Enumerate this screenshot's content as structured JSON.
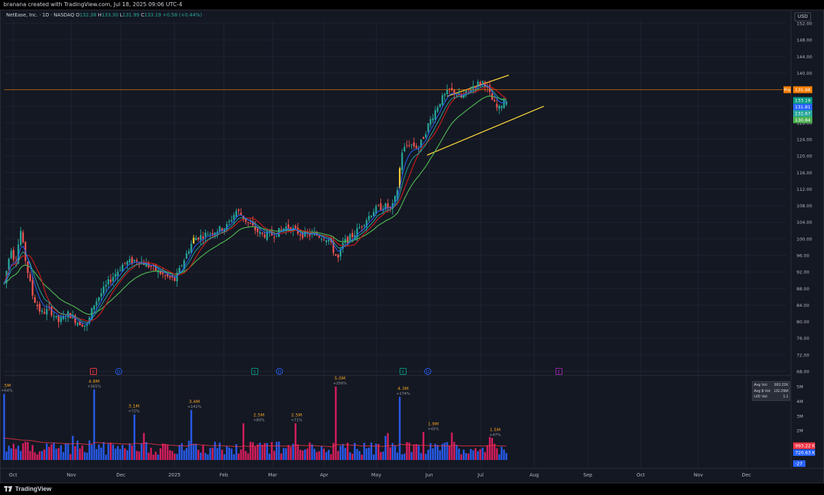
{
  "header": {
    "attribution": "branana created with TradingView.com, Jul 18, 2025 09:06 UTC-4",
    "symbol": "NetEase, Inc. · 1D · NASDAQ",
    "open_label": "O",
    "open": "132.38",
    "high_label": "H",
    "high": "133.30",
    "low_label": "L",
    "low": "131.99",
    "close_label": "C",
    "close": "133.19",
    "change": "+0.58 (+0.44%)",
    "currency": "USD"
  },
  "footer": {
    "brand": "TradingView"
  },
  "colors": {
    "up": "#26a69a",
    "down": "#ef5350",
    "accent_yellow": "#f5d038",
    "ema_fast": "#2962ff",
    "ema_mid": "#26a69a",
    "sma_red": "#b71c1c",
    "ema_slow": "#4caf50",
    "premarket": "#f57c00",
    "vol_blue": "#2962ff",
    "vol_pink": "#e91e63",
    "earnings": "#f23645",
    "dividend": "#2962ff",
    "split": "#089981",
    "future_event": "#9c27b0"
  },
  "price_axis": {
    "ticks": [
      "152.00",
      "148.00",
      "144.00",
      "140.00",
      "136.00",
      "132.00",
      "128.00",
      "124.00",
      "120.00",
      "116.00",
      "112.00",
      "108.00",
      "104.00",
      "100.00",
      "96.00",
      "92.00",
      "88.00",
      "84.00",
      "80.00",
      "76.00",
      "72.00",
      "68.00"
    ],
    "premarket_label": "Pre",
    "premarket_price": "135.98",
    "price_tags": [
      {
        "value": "133.19",
        "color": "#089981"
      },
      {
        "value": "131.81",
        "color": "#2962ff"
      },
      {
        "value": "131.67",
        "color": "#26a69a"
      },
      {
        "value": "130.84",
        "color": "#4caf50"
      }
    ]
  },
  "volume_axis": {
    "ticks": [
      "5M",
      "4M",
      "3M",
      "2M",
      "1M"
    ],
    "tags": [
      {
        "value": "993.22 K",
        "color": "#f23645"
      },
      {
        "value": "720.63 K",
        "color": "#2962ff"
      },
      {
        "value": "-27",
        "color": "#2962ff"
      }
    ],
    "stats": [
      {
        "label": "Avg Vol:",
        "value": "993.22K"
      },
      {
        "label": "Avg $ Vol:",
        "value": "132.29M"
      },
      {
        "label": "U/D Vol:",
        "value": "1.1"
      }
    ]
  },
  "time_axis": {
    "labels": [
      "Oct",
      "Nov",
      "Dec",
      "2025",
      "Feb",
      "Mar",
      "Apr",
      "May",
      "Jun",
      "Jul",
      "Aug",
      "Sep",
      "Oct",
      "Nov",
      "Dec"
    ]
  },
  "event_markers": [
    {
      "letter": "E",
      "type": "earnings"
    },
    {
      "letter": "D",
      "type": "dividend"
    },
    {
      "letter": "E",
      "type": "split"
    },
    {
      "letter": "D",
      "type": "dividend"
    },
    {
      "letter": "E",
      "type": "split"
    },
    {
      "letter": "D",
      "type": "dividend"
    },
    {
      "letter": "E",
      "type": "future_event"
    }
  ],
  "volume_annotations": [
    {
      "volume": ".5M",
      "pct": "+64%"
    },
    {
      "volume": "4.8M",
      "pct": "+365%"
    },
    {
      "volume": "3.1M",
      "pct": "+72%"
    },
    {
      "volume": "3.4M",
      "pct": "+141%"
    },
    {
      "volume": "2.5M",
      "pct": "+80%"
    },
    {
      "volume": "2.5M",
      "pct": "+71%"
    },
    {
      "volume": "5.0M",
      "pct": "+256%"
    },
    {
      "volume": "4.3M",
      "pct": "+174%"
    },
    {
      "volume": "1.9M",
      "pct": "+45%"
    },
    {
      "volume": "1.5M",
      "pct": "+47%"
    }
  ],
  "chart_data": {
    "type": "candlestick",
    "title": "NetEase, Inc. · 1D · NASDAQ",
    "ylim": [
      66,
      154
    ],
    "last_ohlc": {
      "open": 132.38,
      "high": 133.3,
      "low": 131.99,
      "close": 133.19
    },
    "premarket_price": 135.98,
    "monthly_closes_approx": [
      {
        "month": "Oct",
        "close": 84
      },
      {
        "month": "Nov",
        "close": 80
      },
      {
        "month": "Dec",
        "close": 90
      },
      {
        "month": "2025",
        "close": 92
      },
      {
        "month": "Feb",
        "close": 101
      },
      {
        "month": "Mar",
        "close": 103
      },
      {
        "month": "Apr",
        "close": 100
      },
      {
        "month": "May",
        "close": 103
      },
      {
        "month": "Jun",
        "close": 129
      },
      {
        "month": "Jul",
        "close": 133
      }
    ],
    "moving_averages": [
      {
        "name": "EMA fast",
        "last": 131.81
      },
      {
        "name": "EMA mid",
        "last": 131.67
      },
      {
        "name": "EMA slow",
        "last": 130.84
      }
    ]
  }
}
